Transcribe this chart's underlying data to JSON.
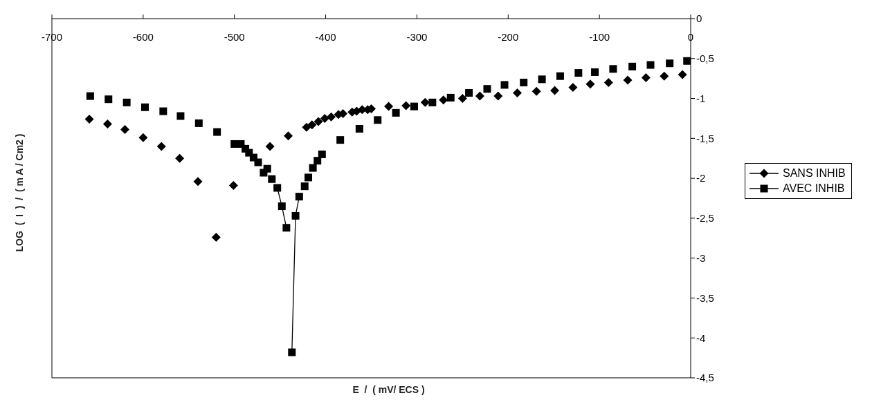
{
  "chart_data": {
    "type": "scatter",
    "xlabel": "E  /  ( mV/ ECS )",
    "ylabel": "LOG  (  I  )  /  ( m A / Cm2 )",
    "xlim": [
      -700,
      0
    ],
    "xticks": [
      -700,
      -600,
      -500,
      -400,
      -300,
      -200,
      -100,
      0
    ],
    "ylim": [
      -4.5,
      0
    ],
    "yticks": [
      0,
      {
        "value": -0.5,
        "label": "-0,5"
      },
      -1,
      {
        "value": -1.5,
        "label": "-1,5"
      },
      -2,
      {
        "value": -2.5,
        "label": "-2,5"
      },
      -3,
      {
        "value": -3.5,
        "label": "-3,5"
      },
      -4,
      {
        "value": -4.5,
        "label": "-4,5"
      }
    ],
    "legend": "right",
    "series": [
      {
        "name": "SANS INHIB",
        "color": "#000000",
        "marker": "diamond",
        "x": [
          -659,
          -639,
          -620,
          -600,
          -580,
          -560,
          -540,
          -520,
          -501,
          -461,
          -441,
          -421,
          -415,
          -408,
          -401,
          -394,
          -386,
          -381,
          -371,
          -366,
          -360,
          -354,
          -350,
          -331,
          -312,
          -291,
          -271,
          -250,
          -231,
          -211,
          -190,
          -169,
          -149,
          -129,
          -110,
          -90,
          -69,
          -49,
          -29,
          -9
        ],
        "values": [
          -1.26,
          -1.32,
          -1.39,
          -1.49,
          -1.6,
          -1.75,
          -2.04,
          -2.74,
          -2.09,
          -1.6,
          -1.47,
          -1.36,
          -1.33,
          -1.29,
          -1.25,
          -1.23,
          -1.2,
          -1.19,
          -1.17,
          -1.16,
          -1.14,
          -1.14,
          -1.13,
          -1.1,
          -1.09,
          -1.05,
          -1.02,
          -1.0,
          -0.97,
          -0.97,
          -0.93,
          -0.91,
          -0.9,
          -0.86,
          -0.82,
          -0.8,
          -0.77,
          -0.74,
          -0.72,
          -0.7
        ]
      },
      {
        "name": "AVEC INHIB",
        "color": "#000000",
        "marker": "square",
        "x": [
          -658,
          -638,
          -618,
          -598,
          -578,
          -559,
          -539,
          -519,
          -500,
          -493,
          -488,
          -484,
          -479,
          -474,
          -468,
          -464,
          -459,
          -453,
          -448,
          -443,
          -437,
          -433,
          -429,
          -423,
          -419,
          -414,
          -409,
          -404,
          -384,
          -363,
          -343,
          -323,
          -303,
          -283,
          -263,
          -243,
          -223,
          -204,
          -183,
          -163,
          -143,
          -123,
          -105,
          -85,
          -64,
          -44,
          -23,
          -4
        ],
        "values": [
          -0.97,
          -1.01,
          -1.05,
          -1.11,
          -1.16,
          -1.22,
          -1.31,
          -1.42,
          -1.57,
          -1.57,
          -1.63,
          -1.68,
          -1.74,
          -1.8,
          -1.93,
          -1.88,
          -2.01,
          -2.12,
          -2.35,
          -2.62,
          -4.18,
          -2.47,
          -2.23,
          -2.1,
          -1.99,
          -1.87,
          -1.78,
          -1.7,
          -1.52,
          -1.38,
          -1.27,
          -1.18,
          -1.1,
          -1.05,
          -0.99,
          -0.93,
          -0.88,
          -0.83,
          -0.8,
          -0.76,
          -0.72,
          -0.68,
          -0.67,
          -0.63,
          -0.6,
          -0.58,
          -0.56,
          -0.53
        ]
      },
      {
        "type": "line",
        "color": "#000000",
        "marker": "none",
        "x": [
          -453,
          -448,
          -443,
          -440,
          -437,
          -433,
          -429
        ],
        "values": [
          -2.12,
          -2.35,
          -2.62,
          null,
          -4.18,
          -2.47,
          -2.23
        ]
      }
    ]
  }
}
